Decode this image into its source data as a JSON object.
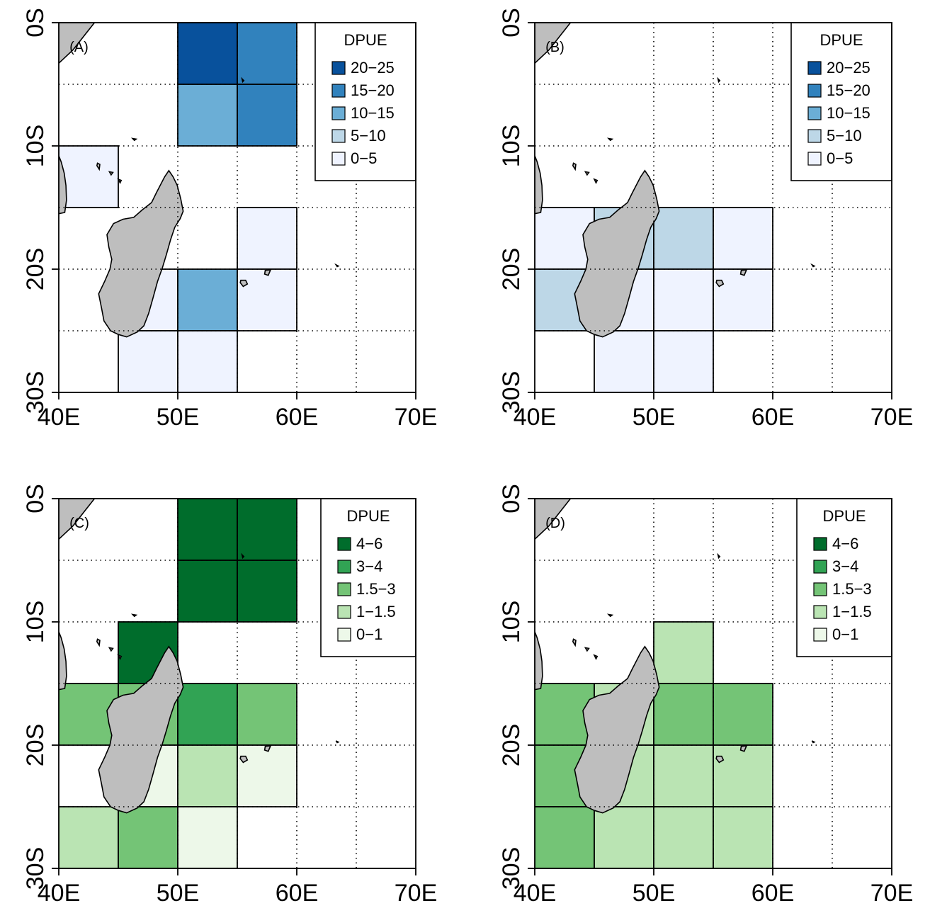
{
  "x_ticks": [
    "40E",
    "50E",
    "60E",
    "70E"
  ],
  "y_ticks": [
    "0S",
    "10S",
    "20S",
    "30S"
  ],
  "colors": {
    "land": "#bebebe",
    "blues": [
      "#eff3ff",
      "#bdd7e7",
      "#6baed6",
      "#3182bd",
      "#08519c"
    ],
    "greens": [
      "#edf8e9",
      "#bae4b3",
      "#74c476",
      "#31a354",
      "#006d2c"
    ]
  },
  "chart_data": [
    {
      "type": "heatmap",
      "panel_label": "(A)",
      "legend_title": "DPUE",
      "legend_entries": [
        "20−25",
        "15−20",
        "10−15",
        "5−10",
        "0−5"
      ],
      "palette": "blues",
      "xlim": [
        40,
        70
      ],
      "ylim": [
        -30,
        0
      ],
      "cell_size_deg": 5,
      "cells": [
        {
          "lon": 50,
          "lat": 0,
          "class": 4
        },
        {
          "lon": 55,
          "lat": 0,
          "class": 3
        },
        {
          "lon": 50,
          "lat": -5,
          "class": 2
        },
        {
          "lon": 55,
          "lat": -5,
          "class": 3
        },
        {
          "lon": 40,
          "lat": -10,
          "class": 0
        },
        {
          "lon": 55,
          "lat": -15,
          "class": 0
        },
        {
          "lon": 45,
          "lat": -20,
          "class": 0
        },
        {
          "lon": 50,
          "lat": -20,
          "class": 2
        },
        {
          "lon": 55,
          "lat": -20,
          "class": 0
        },
        {
          "lon": 45,
          "lat": -25,
          "class": 0
        },
        {
          "lon": 50,
          "lat": -25,
          "class": 0
        }
      ]
    },
    {
      "type": "heatmap",
      "panel_label": "(B)",
      "legend_title": "DPUE",
      "legend_entries": [
        "20−25",
        "15−20",
        "10−15",
        "5−10",
        "0−5"
      ],
      "palette": "blues",
      "xlim": [
        40,
        70
      ],
      "ylim": [
        -30,
        0
      ],
      "cell_size_deg": 5,
      "cells": [
        {
          "lon": 40,
          "lat": -15,
          "class": 0
        },
        {
          "lon": 45,
          "lat": -15,
          "class": 1
        },
        {
          "lon": 50,
          "lat": -15,
          "class": 1
        },
        {
          "lon": 55,
          "lat": -15,
          "class": 0
        },
        {
          "lon": 40,
          "lat": -20,
          "class": 1
        },
        {
          "lon": 45,
          "lat": -20,
          "class": 0
        },
        {
          "lon": 50,
          "lat": -20,
          "class": 0
        },
        {
          "lon": 55,
          "lat": -20,
          "class": 0
        },
        {
          "lon": 45,
          "lat": -25,
          "class": 0
        },
        {
          "lon": 50,
          "lat": -25,
          "class": 0
        }
      ]
    },
    {
      "type": "heatmap",
      "panel_label": "(C)",
      "legend_title": "DPUE",
      "legend_entries": [
        "4−6",
        "3−4",
        "1.5−3",
        "1−1.5",
        "0−1"
      ],
      "palette": "greens",
      "xlim": [
        40,
        70
      ],
      "ylim": [
        -30,
        0
      ],
      "cell_size_deg": 5,
      "cells": [
        {
          "lon": 50,
          "lat": 0,
          "class": 4
        },
        {
          "lon": 55,
          "lat": 0,
          "class": 4
        },
        {
          "lon": 50,
          "lat": -5,
          "class": 4
        },
        {
          "lon": 55,
          "lat": -5,
          "class": 4
        },
        {
          "lon": 45,
          "lat": -10,
          "class": 4
        },
        {
          "lon": 40,
          "lat": -15,
          "class": 2
        },
        {
          "lon": 45,
          "lat": -15,
          "class": 2
        },
        {
          "lon": 50,
          "lat": -15,
          "class": 3
        },
        {
          "lon": 55,
          "lat": -15,
          "class": 2
        },
        {
          "lon": 45,
          "lat": -20,
          "class": 0
        },
        {
          "lon": 50,
          "lat": -20,
          "class": 1
        },
        {
          "lon": 55,
          "lat": -20,
          "class": 0
        },
        {
          "lon": 40,
          "lat": -25,
          "class": 1
        },
        {
          "lon": 45,
          "lat": -25,
          "class": 2
        },
        {
          "lon": 50,
          "lat": -25,
          "class": 0
        }
      ]
    },
    {
      "type": "heatmap",
      "panel_label": "(D)",
      "legend_title": "DPUE",
      "legend_entries": [
        "4−6",
        "3−4",
        "1.5−3",
        "1−1.5",
        "0−1"
      ],
      "palette": "greens",
      "xlim": [
        40,
        70
      ],
      "ylim": [
        -30,
        0
      ],
      "cell_size_deg": 5,
      "cells": [
        {
          "lon": 50,
          "lat": -10,
          "class": 1
        },
        {
          "lon": 40,
          "lat": -15,
          "class": 2
        },
        {
          "lon": 45,
          "lat": -15,
          "class": 1
        },
        {
          "lon": 50,
          "lat": -15,
          "class": 2
        },
        {
          "lon": 55,
          "lat": -15,
          "class": 2
        },
        {
          "lon": 40,
          "lat": -20,
          "class": 2
        },
        {
          "lon": 45,
          "lat": -20,
          "class": 1
        },
        {
          "lon": 50,
          "lat": -20,
          "class": 1
        },
        {
          "lon": 55,
          "lat": -20,
          "class": 1
        },
        {
          "lon": 40,
          "lat": -25,
          "class": 2
        },
        {
          "lon": 45,
          "lat": -25,
          "class": 1
        },
        {
          "lon": 50,
          "lat": -25,
          "class": 1
        },
        {
          "lon": 55,
          "lat": -25,
          "class": 1
        }
      ]
    }
  ]
}
